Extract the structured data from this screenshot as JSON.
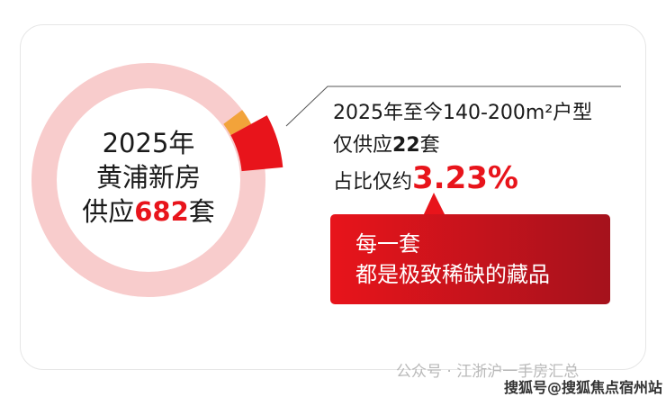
{
  "center": {
    "line1": "2025年",
    "line2": "黄浦新房",
    "line3_prefix": "供应",
    "line3_number": "682",
    "line3_suffix": "套"
  },
  "info": {
    "line1": "2025年至今140-200m²户型",
    "line2_prefix": "仅供应",
    "line2_number": "22",
    "line2_suffix": "套",
    "line3_prefix": "占比仅约",
    "line3_percent": "3.23%"
  },
  "callout": {
    "line1": "每一套",
    "line2": "都是极致稀缺的藏品"
  },
  "watermarks": {
    "wechat": "公众号 · 江浙沪一手房汇总",
    "sohu": "搜狐号@搜狐焦点宿州站"
  },
  "donut": {
    "total": 682,
    "highlight": 22,
    "highlight_share_percent": 3.23
  },
  "colors": {
    "ring": "#f8cccc",
    "highlight": "#e8141b",
    "accent_orange": "#f2a33a",
    "callout_start": "#e8141b",
    "callout_end": "#a5121c"
  }
}
